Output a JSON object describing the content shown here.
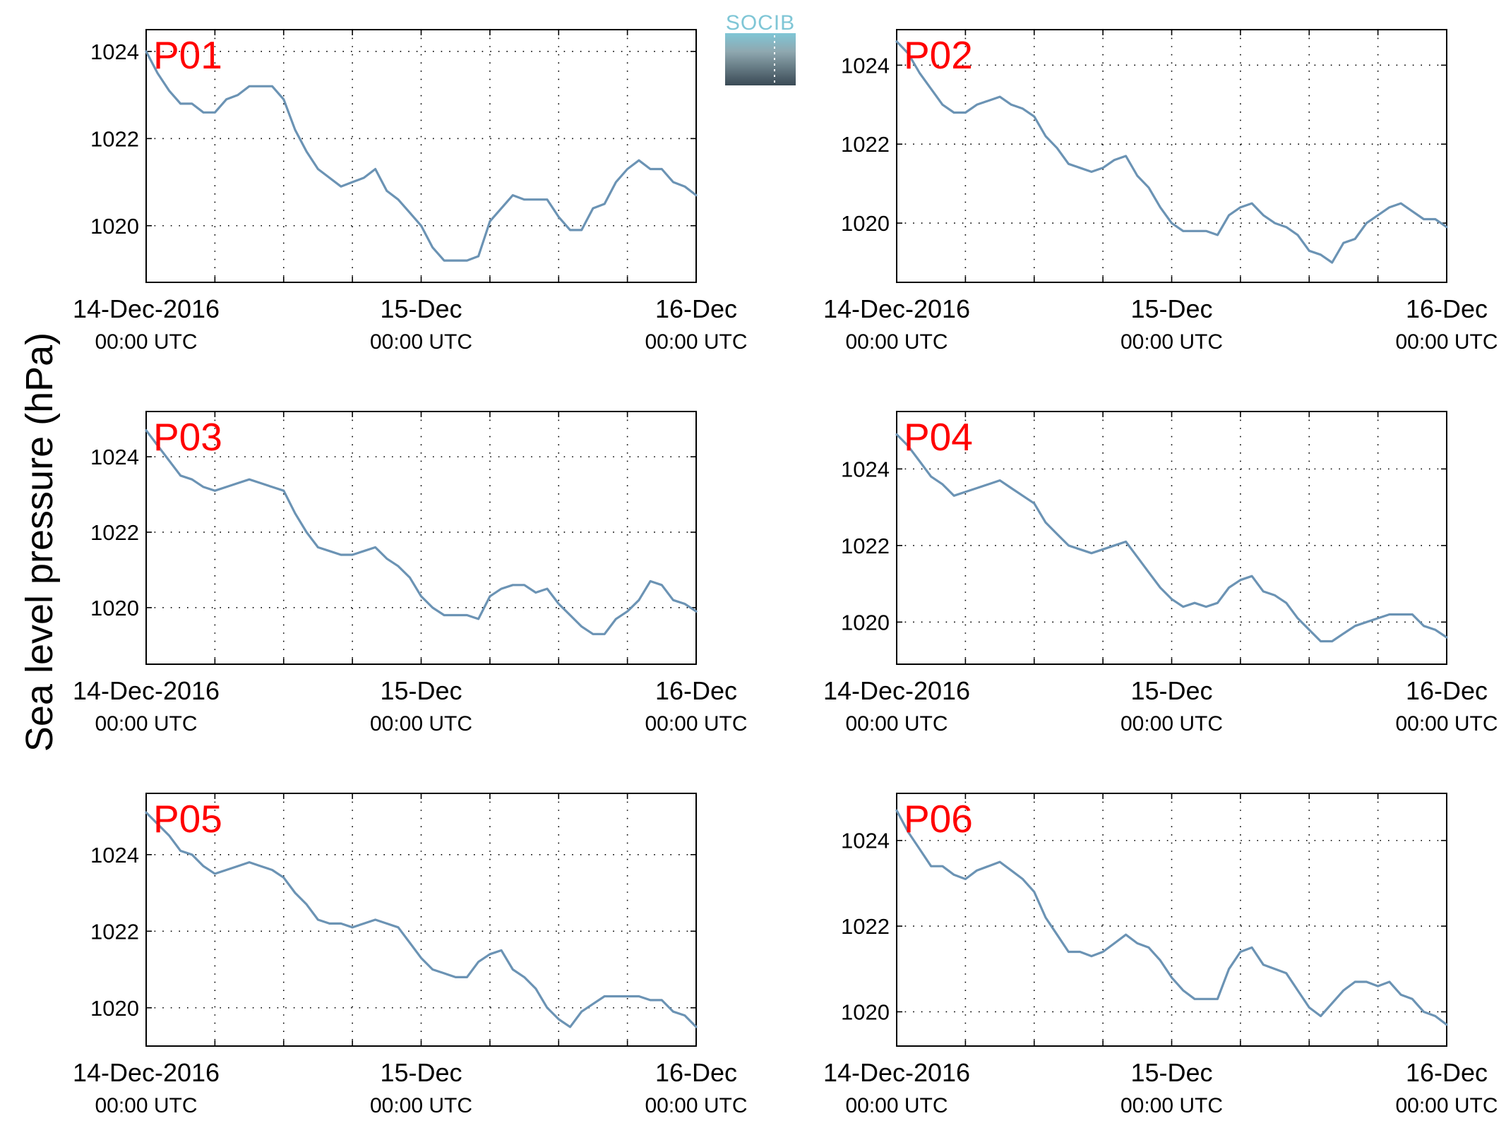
{
  "figure": {
    "ylabel": "Sea level pressure (hPa)",
    "logo_text": "SOCIB",
    "line_color": "#6b93b4",
    "label_color": "#ff0000"
  },
  "chart_data": [
    {
      "type": "line",
      "title": "P01",
      "xlabel": "",
      "ylabel": "Sea level pressure (hPa)",
      "xlim": [
        "2016-12-14 00:00",
        "2016-12-16 00:00"
      ],
      "ylim": [
        1018.7,
        1024.5
      ],
      "xticks": [
        {
          "date": "14-Dec-2016",
          "time": "00:00 UTC"
        },
        {
          "date": "15-Dec",
          "time": "00:00 UTC"
        },
        {
          "date": "16-Dec",
          "time": "00:00 UTC"
        }
      ],
      "yticks": [
        1020,
        1022,
        1024
      ],
      "grid": true,
      "x_hours": [
        0,
        1,
        2,
        3,
        4,
        5,
        6,
        7,
        8,
        9,
        10,
        11,
        12,
        13,
        14,
        15,
        16,
        17,
        18,
        19,
        20,
        21,
        22,
        23,
        24,
        25,
        26,
        27,
        28,
        29,
        30,
        31,
        32,
        33,
        34,
        35,
        36,
        37,
        38,
        39,
        40,
        41,
        42,
        43,
        44,
        45,
        46,
        47,
        48
      ],
      "values": [
        1024.0,
        1023.5,
        1023.1,
        1022.8,
        1022.8,
        1022.6,
        1022.6,
        1022.9,
        1023.0,
        1023.2,
        1023.2,
        1023.2,
        1022.9,
        1022.2,
        1021.7,
        1021.3,
        1021.1,
        1020.9,
        1021.0,
        1021.1,
        1021.3,
        1020.8,
        1020.6,
        1020.3,
        1020.0,
        1019.5,
        1019.2,
        1019.2,
        1019.2,
        1019.3,
        1020.1,
        1020.4,
        1020.7,
        1020.6,
        1020.6,
        1020.6,
        1020.2,
        1019.9,
        1019.9,
        1020.4,
        1020.5,
        1021.0,
        1021.3,
        1021.5,
        1021.3,
        1021.3,
        1021.0,
        1020.9,
        1020.7
      ]
    },
    {
      "type": "line",
      "title": "P02",
      "xlabel": "",
      "ylabel": "Sea level pressure (hPa)",
      "xlim": [
        "2016-12-14 00:00",
        "2016-12-16 00:00"
      ],
      "ylim": [
        1018.5,
        1024.9
      ],
      "xticks": [
        {
          "date": "14-Dec-2016",
          "time": "00:00 UTC"
        },
        {
          "date": "15-Dec",
          "time": "00:00 UTC"
        },
        {
          "date": "16-Dec",
          "time": "00:00 UTC"
        }
      ],
      "yticks": [
        1020,
        1022,
        1024
      ],
      "grid": true,
      "x_hours": [
        0,
        1,
        2,
        3,
        4,
        5,
        6,
        7,
        8,
        9,
        10,
        11,
        12,
        13,
        14,
        15,
        16,
        17,
        18,
        19,
        20,
        21,
        22,
        23,
        24,
        25,
        26,
        27,
        28,
        29,
        30,
        31,
        32,
        33,
        34,
        35,
        36,
        37,
        38,
        39,
        40,
        41,
        42,
        43,
        44,
        45,
        46,
        47,
        48
      ],
      "values": [
        1024.6,
        1024.3,
        1023.8,
        1023.4,
        1023.0,
        1022.8,
        1022.8,
        1023.0,
        1023.1,
        1023.2,
        1023.0,
        1022.9,
        1022.7,
        1022.2,
        1021.9,
        1021.5,
        1021.4,
        1021.3,
        1021.4,
        1021.6,
        1021.7,
        1021.2,
        1020.9,
        1020.4,
        1020.0,
        1019.8,
        1019.8,
        1019.8,
        1019.7,
        1020.2,
        1020.4,
        1020.5,
        1020.2,
        1020.0,
        1019.9,
        1019.7,
        1019.3,
        1019.2,
        1019.0,
        1019.5,
        1019.6,
        1020.0,
        1020.2,
        1020.4,
        1020.5,
        1020.3,
        1020.1,
        1020.1,
        1019.9
      ]
    },
    {
      "type": "line",
      "title": "P03",
      "xlabel": "",
      "ylabel": "Sea level pressure (hPa)",
      "xlim": [
        "2016-12-14 00:00",
        "2016-12-16 00:00"
      ],
      "ylim": [
        1018.5,
        1025.2
      ],
      "xticks": [
        {
          "date": "14-Dec-2016",
          "time": "00:00 UTC"
        },
        {
          "date": "15-Dec",
          "time": "00:00 UTC"
        },
        {
          "date": "16-Dec",
          "time": "00:00 UTC"
        }
      ],
      "yticks": [
        1020,
        1022,
        1024
      ],
      "grid": true,
      "x_hours": [
        0,
        1,
        2,
        3,
        4,
        5,
        6,
        7,
        8,
        9,
        10,
        11,
        12,
        13,
        14,
        15,
        16,
        17,
        18,
        19,
        20,
        21,
        22,
        23,
        24,
        25,
        26,
        27,
        28,
        29,
        30,
        31,
        32,
        33,
        34,
        35,
        36,
        37,
        38,
        39,
        40,
        41,
        42,
        43,
        44,
        45,
        46,
        47,
        48
      ],
      "values": [
        1024.7,
        1024.3,
        1023.9,
        1023.5,
        1023.4,
        1023.2,
        1023.1,
        1023.2,
        1023.3,
        1023.4,
        1023.3,
        1023.2,
        1023.1,
        1022.5,
        1022.0,
        1021.6,
        1021.5,
        1021.4,
        1021.4,
        1021.5,
        1021.6,
        1021.3,
        1021.1,
        1020.8,
        1020.3,
        1020.0,
        1019.8,
        1019.8,
        1019.8,
        1019.7,
        1020.3,
        1020.5,
        1020.6,
        1020.6,
        1020.4,
        1020.5,
        1020.1,
        1019.8,
        1019.5,
        1019.3,
        1019.3,
        1019.7,
        1019.9,
        1020.2,
        1020.7,
        1020.6,
        1020.2,
        1020.1,
        1019.9
      ]
    },
    {
      "type": "line",
      "title": "P04",
      "xlabel": "",
      "ylabel": "Sea level pressure (hPa)",
      "xlim": [
        "2016-12-14 00:00",
        "2016-12-16 00:00"
      ],
      "ylim": [
        1018.9,
        1025.5
      ],
      "xticks": [
        {
          "date": "14-Dec-2016",
          "time": "00:00 UTC"
        },
        {
          "date": "15-Dec",
          "time": "00:00 UTC"
        },
        {
          "date": "16-Dec",
          "time": "00:00 UTC"
        }
      ],
      "yticks": [
        1020,
        1022,
        1024
      ],
      "grid": true,
      "x_hours": [
        0,
        1,
        2,
        3,
        4,
        5,
        6,
        7,
        8,
        9,
        10,
        11,
        12,
        13,
        14,
        15,
        16,
        17,
        18,
        19,
        20,
        21,
        22,
        23,
        24,
        25,
        26,
        27,
        28,
        29,
        30,
        31,
        32,
        33,
        34,
        35,
        36,
        37,
        38,
        39,
        40,
        41,
        42,
        43,
        44,
        45,
        46,
        47,
        48
      ],
      "values": [
        1024.9,
        1024.6,
        1024.2,
        1023.8,
        1023.6,
        1023.3,
        1023.4,
        1023.5,
        1023.6,
        1023.7,
        1023.5,
        1023.3,
        1023.1,
        1022.6,
        1022.3,
        1022.0,
        1021.9,
        1021.8,
        1021.9,
        1022.0,
        1022.1,
        1021.7,
        1021.3,
        1020.9,
        1020.6,
        1020.4,
        1020.5,
        1020.4,
        1020.5,
        1020.9,
        1021.1,
        1021.2,
        1020.8,
        1020.7,
        1020.5,
        1020.1,
        1019.8,
        1019.5,
        1019.5,
        1019.7,
        1019.9,
        1020.0,
        1020.1,
        1020.2,
        1020.2,
        1020.2,
        1019.9,
        1019.8,
        1019.6
      ]
    },
    {
      "type": "line",
      "title": "P05",
      "xlabel": "",
      "ylabel": "Sea level pressure (hPa)",
      "xlim": [
        "2016-12-14 00:00",
        "2016-12-16 00:00"
      ],
      "ylim": [
        1019.0,
        1025.6
      ],
      "xticks": [
        {
          "date": "14-Dec-2016",
          "time": "00:00 UTC"
        },
        {
          "date": "15-Dec",
          "time": "00:00 UTC"
        },
        {
          "date": "16-Dec",
          "time": "00:00 UTC"
        }
      ],
      "yticks": [
        1020,
        1022,
        1024
      ],
      "grid": true,
      "x_hours": [
        0,
        1,
        2,
        3,
        4,
        5,
        6,
        7,
        8,
        9,
        10,
        11,
        12,
        13,
        14,
        15,
        16,
        17,
        18,
        19,
        20,
        21,
        22,
        23,
        24,
        25,
        26,
        27,
        28,
        29,
        30,
        31,
        32,
        33,
        34,
        35,
        36,
        37,
        38,
        39,
        40,
        41,
        42,
        43,
        44,
        45,
        46,
        47,
        48
      ],
      "values": [
        1025.1,
        1024.8,
        1024.5,
        1024.1,
        1024.0,
        1023.7,
        1023.5,
        1023.6,
        1023.7,
        1023.8,
        1023.7,
        1023.6,
        1023.4,
        1023.0,
        1022.7,
        1022.3,
        1022.2,
        1022.2,
        1022.1,
        1022.2,
        1022.3,
        1022.2,
        1022.1,
        1021.7,
        1021.3,
        1021.0,
        1020.9,
        1020.8,
        1020.8,
        1021.2,
        1021.4,
        1021.5,
        1021.0,
        1020.8,
        1020.5,
        1020.0,
        1019.7,
        1019.5,
        1019.9,
        1020.1,
        1020.3,
        1020.3,
        1020.3,
        1020.3,
        1020.2,
        1020.2,
        1019.9,
        1019.8,
        1019.5
      ]
    },
    {
      "type": "line",
      "title": "P06",
      "xlabel": "",
      "ylabel": "Sea level pressure (hPa)",
      "xlim": [
        "2016-12-14 00:00",
        "2016-12-16 00:00"
      ],
      "ylim": [
        1019.2,
        1025.1
      ],
      "xticks": [
        {
          "date": "14-Dec-2016",
          "time": "00:00 UTC"
        },
        {
          "date": "15-Dec",
          "time": "00:00 UTC"
        },
        {
          "date": "16-Dec",
          "time": "00:00 UTC"
        }
      ],
      "yticks": [
        1020,
        1022,
        1024
      ],
      "grid": true,
      "x_hours": [
        0,
        1,
        2,
        3,
        4,
        5,
        6,
        7,
        8,
        9,
        10,
        11,
        12,
        13,
        14,
        15,
        16,
        17,
        18,
        19,
        20,
        21,
        22,
        23,
        24,
        25,
        26,
        27,
        28,
        29,
        30,
        31,
        32,
        33,
        34,
        35,
        36,
        37,
        38,
        39,
        40,
        41,
        42,
        43,
        44,
        45,
        46,
        47,
        48
      ],
      "values": [
        1024.7,
        1024.2,
        1023.8,
        1023.4,
        1023.4,
        1023.2,
        1023.1,
        1023.3,
        1023.4,
        1023.5,
        1023.3,
        1023.1,
        1022.8,
        1022.2,
        1021.8,
        1021.4,
        1021.4,
        1021.3,
        1021.4,
        1021.6,
        1021.8,
        1021.6,
        1021.5,
        1021.2,
        1020.8,
        1020.5,
        1020.3,
        1020.3,
        1020.3,
        1021.0,
        1021.4,
        1021.5,
        1021.1,
        1021.0,
        1020.9,
        1020.5,
        1020.1,
        1019.9,
        1020.2,
        1020.5,
        1020.7,
        1020.7,
        1020.6,
        1020.7,
        1020.4,
        1020.3,
        1020.0,
        1019.9,
        1019.7
      ]
    }
  ]
}
